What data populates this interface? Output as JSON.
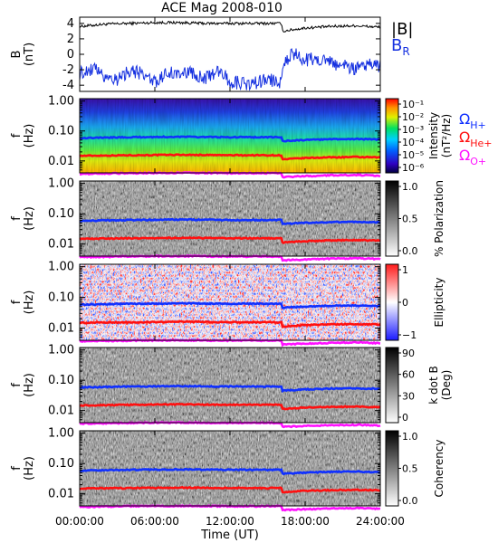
{
  "title": "ACE Mag 2008-010",
  "x_axis": {
    "label": "Time (UT)",
    "range_hours": [
      0,
      24
    ],
    "ticks": [
      {
        "value": 0,
        "label": "00:00:00"
      },
      {
        "value": 6,
        "label": "06:00:00"
      },
      {
        "value": 12,
        "label": "12:00:00"
      },
      {
        "value": 18,
        "label": "18:00:00"
      },
      {
        "value": 24,
        "label": "24:00:00"
      }
    ]
  },
  "colors": {
    "B_total": "#000000",
    "B_R": "#1530e0",
    "omega_Hplus": "#1030ff",
    "omega_Heplus": "#ff1010",
    "omega_Oplus": "#ff10ff"
  },
  "chart_data": [
    {
      "type": "line",
      "panel": "magnetic-field",
      "ylabel_line1": "B",
      "ylabel_line2": "(nT)",
      "ylim": [
        -4.8,
        4.8
      ],
      "yticks": [
        "4",
        "2",
        "0",
        "-2",
        "-4"
      ],
      "ytick_values": [
        4,
        2,
        0,
        -2,
        -4
      ],
      "legend": {
        "B_total": "|B|",
        "B_R_main": "B",
        "B_R_sub": "R"
      },
      "series": [
        {
          "key": "B_total",
          "hours": [
            0,
            2,
            4,
            6,
            8,
            10,
            12,
            14,
            16.1,
            16.2,
            18,
            20,
            22,
            24
          ],
          "values": [
            3.6,
            3.9,
            4.0,
            4.1,
            4.1,
            4.0,
            4.0,
            4.0,
            4.0,
            3.0,
            3.4,
            3.6,
            3.7,
            3.5
          ]
        },
        {
          "key": "B_R",
          "hours": [
            0,
            1,
            2,
            3,
            4,
            5,
            6,
            7,
            8,
            9,
            10,
            11,
            12,
            13,
            14,
            15,
            16,
            16.2,
            17,
            18,
            19,
            20,
            21,
            22,
            23,
            24
          ],
          "values": [
            -2.5,
            -1.8,
            -2.8,
            -3.2,
            -2.0,
            -2.6,
            -3.6,
            -2.5,
            -2.3,
            -2.4,
            -3.2,
            -2.0,
            -3.5,
            -3.8,
            -3.7,
            -3.3,
            -3.6,
            -1.5,
            0.2,
            -0.8,
            -0.5,
            -1.0,
            -1.5,
            -1.8,
            -1.2,
            -1.5
          ]
        }
      ]
    },
    {
      "type": "heatmap",
      "panel": "intensity",
      "ylabel_line1": "f",
      "ylabel_line2": "(Hz)",
      "yscale": "log",
      "ylim": [
        0.004,
        1.2
      ],
      "yticks": [
        "1.00",
        "0.10",
        "0.01"
      ],
      "colorbar": {
        "palette": "rainbow",
        "scale": "log",
        "label_line1": "Intensity",
        "label_line2": "(nT²/Hz)",
        "ticks": [
          "10⁻¹",
          "10⁻²",
          "10⁻³",
          "10⁻⁴",
          "10⁻⁵",
          "10⁻⁶"
        ],
        "tick_values": [
          0.1,
          0.01,
          0.001,
          0.0001,
          1e-05,
          1e-06
        ]
      },
      "gyrofrequency_legend": [
        {
          "key": "omega_Hplus",
          "main": "Ω",
          "sub": "H+"
        },
        {
          "key": "omega_Heplus",
          "main": "Ω",
          "sub": "He+"
        },
        {
          "key": "omega_Oplus",
          "main": "Ω",
          "sub": "O+"
        }
      ]
    },
    {
      "type": "heatmap",
      "panel": "polarization",
      "ylabel_line1": "f",
      "ylabel_line2": "(Hz)",
      "yscale": "log",
      "ylim": [
        0.004,
        1.2
      ],
      "yticks": [
        "1.00",
        "0.10",
        "0.01"
      ],
      "colorbar": {
        "palette": "gray",
        "label_line1": "% Polarization",
        "label_line2": "",
        "ticks": [
          "1.0",
          "0.5",
          "0.0"
        ],
        "tick_values": [
          1.0,
          0.5,
          0.0
        ]
      }
    },
    {
      "type": "heatmap",
      "panel": "ellipticity",
      "ylabel_line1": "f",
      "ylabel_line2": "(Hz)",
      "yscale": "log",
      "ylim": [
        0.004,
        1.2
      ],
      "yticks": [
        "1.00",
        "0.10",
        "0.01"
      ],
      "colorbar": {
        "palette": "bwr",
        "label_line1": "Ellipticity",
        "label_line2": "",
        "ticks": [
          "1",
          "0",
          "−1"
        ],
        "tick_values": [
          1,
          0,
          -1
        ]
      }
    },
    {
      "type": "heatmap",
      "panel": "k-dot-b",
      "ylabel_line1": "f",
      "ylabel_line2": "(Hz)",
      "yscale": "log",
      "ylim": [
        0.004,
        1.2
      ],
      "yticks": [
        "1.00",
        "0.10",
        "0.01"
      ],
      "colorbar": {
        "palette": "gray",
        "label_line1": "k dot B",
        "label_line2": "(Deg)",
        "ticks": [
          "90",
          "60",
          "30",
          "0"
        ],
        "tick_values": [
          90,
          60,
          30,
          0
        ]
      }
    },
    {
      "type": "heatmap",
      "panel": "coherency",
      "ylabel_line1": "f",
      "ylabel_line2": "(Hz)",
      "yscale": "log",
      "ylim": [
        0.004,
        1.2
      ],
      "yticks": [
        "1.00",
        "0.10",
        "0.01"
      ],
      "colorbar": {
        "palette": "gray",
        "label_line1": "Coherency",
        "label_line2": "",
        "ticks": [
          "1.0",
          "0.5",
          "0.0"
        ],
        "tick_values": [
          1.0,
          0.5,
          0.0
        ]
      }
    }
  ],
  "gyrofrequency_curves": {
    "hours": [
      0,
      4,
      8,
      12,
      16.1,
      16.2,
      18,
      20,
      22,
      24
    ],
    "omega_Hplus": [
      0.058,
      0.062,
      0.064,
      0.062,
      0.062,
      0.046,
      0.05,
      0.053,
      0.054,
      0.052
    ],
    "omega_Heplus": [
      0.0148,
      0.0155,
      0.016,
      0.0155,
      0.0155,
      0.0112,
      0.0125,
      0.0132,
      0.0135,
      0.013
    ],
    "omega_Oplus": [
      0.0037,
      0.0039,
      0.004,
      0.0039,
      0.0039,
      0.0029,
      0.0031,
      0.0033,
      0.0034,
      0.0032
    ]
  }
}
